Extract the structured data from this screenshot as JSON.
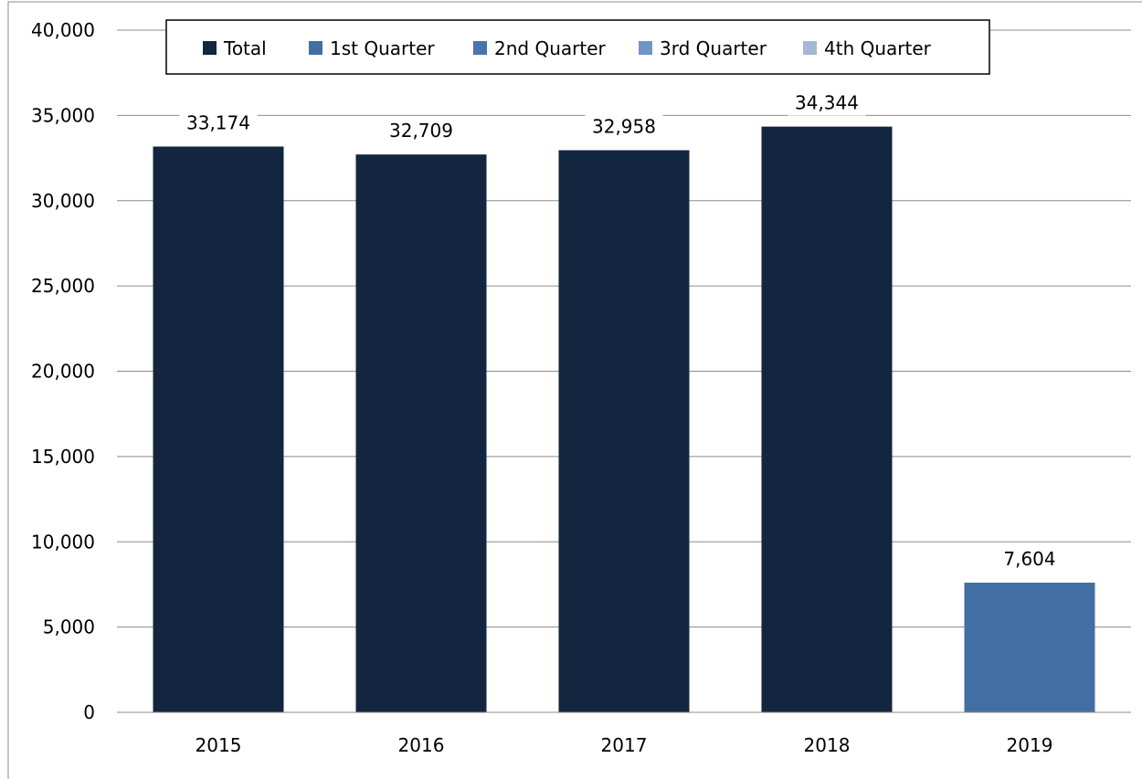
{
  "chart_data": {
    "type": "bar",
    "categories": [
      "2015",
      "2016",
      "2017",
      "2018",
      "2019"
    ],
    "series": [
      {
        "name": "Total",
        "values": [
          33174,
          32709,
          32958,
          34344,
          null
        ],
        "color": "#13263f"
      },
      {
        "name": "1st Quarter",
        "values": [
          null,
          null,
          null,
          null,
          7604
        ],
        "color": "#436ea3"
      },
      {
        "name": "2nd Quarter",
        "values": [
          null,
          null,
          null,
          null,
          null
        ],
        "color": "#4a74ad"
      },
      {
        "name": "3rd Quarter",
        "values": [
          null,
          null,
          null,
          null,
          null
        ],
        "color": "#6f95c6"
      },
      {
        "name": "4th Quarter",
        "values": [
          null,
          null,
          null,
          null,
          null
        ],
        "color": "#a3b8d6"
      }
    ],
    "data_labels": [
      "33,174",
      "32,709",
      "32,958",
      "34,344",
      "7,604"
    ],
    "yticks": [
      "0",
      "5,000",
      "10,000",
      "15,000",
      "20,000",
      "25,000",
      "30,000",
      "35,000",
      "40,000"
    ],
    "ylim": [
      0,
      40000
    ],
    "grid": true,
    "legend_position": "top"
  }
}
